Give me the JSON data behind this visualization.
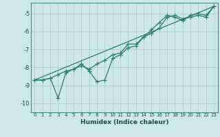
{
  "xlabel": "Humidex (Indice chaleur)",
  "bg_color": "#cce8e8",
  "grid_color": "#b0cccc",
  "line_color": "#2a7a6a",
  "xlim": [
    -0.5,
    23.5
  ],
  "ylim": [
    -10.5,
    -4.4
  ],
  "yticks": [
    -10,
    -9,
    -8,
    -7,
    -6,
    -5
  ],
  "xticks": [
    0,
    1,
    2,
    3,
    4,
    5,
    6,
    7,
    8,
    9,
    10,
    11,
    12,
    13,
    14,
    15,
    16,
    17,
    18,
    19,
    20,
    21,
    22,
    23
  ],
  "series1_x": [
    0,
    1,
    2,
    3,
    4,
    5,
    6,
    7,
    8,
    9,
    10,
    11,
    12,
    13,
    14,
    15,
    16,
    17,
    18,
    19,
    20,
    21,
    22,
    23
  ],
  "series1_y": [
    -8.7,
    -8.7,
    -8.6,
    -8.4,
    -8.2,
    -8.1,
    -7.9,
    -8.1,
    -7.8,
    -7.6,
    -7.3,
    -7.2,
    -6.7,
    -6.7,
    -6.3,
    -5.9,
    -5.5,
    -5.1,
    -5.2,
    -5.4,
    -5.1,
    -5.0,
    -5.1,
    -4.6
  ],
  "series2_x": [
    0,
    1,
    2,
    3,
    4,
    5,
    6,
    7,
    8,
    9,
    10,
    11,
    12,
    13,
    14,
    15,
    16,
    17,
    18,
    19,
    20,
    21,
    22,
    23
  ],
  "series2_y": [
    -8.7,
    -8.7,
    -8.6,
    -9.7,
    -8.3,
    -8.1,
    -7.8,
    -8.2,
    -8.8,
    -8.7,
    -7.5,
    -7.3,
    -6.9,
    -6.8,
    -6.3,
    -6.1,
    -5.8,
    -5.2,
    -5.1,
    -5.3,
    -5.2,
    -5.1,
    -5.2,
    -4.6
  ],
  "series3_x": [
    0,
    23
  ],
  "series3_y": [
    -8.7,
    -4.6
  ]
}
